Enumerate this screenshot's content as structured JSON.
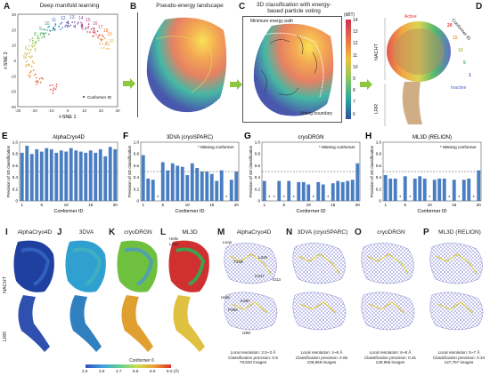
{
  "panels": {
    "A": {
      "letter": "A",
      "title": "Deep manifold learning",
      "xlabel": "t-SNE 1",
      "ylabel": "t-SNE 2",
      "legend": "Conformer ID",
      "xticks": [
        "-30",
        "-20",
        "-10",
        "0",
        "10",
        "20",
        "30"
      ],
      "yticks": [
        "30",
        "20",
        "10",
        "0",
        "-10",
        "-20",
        "-30"
      ],
      "ids": [
        "1",
        "2",
        "3",
        "4",
        "5",
        "6",
        "7",
        "8",
        "9",
        "10",
        "11",
        "12",
        "13",
        "14",
        "15",
        "16",
        "17",
        "18",
        "19",
        "20"
      ]
    },
    "B": {
      "letter": "B",
      "title": "Pseudo-energy landscape"
    },
    "C": {
      "letter": "C",
      "title": "3D classification with energy-based particle voting",
      "mep": "Minimum energy path",
      "boundary": "Voting boundary",
      "unit": "(kBT)",
      "cbar": [
        "14",
        "13",
        "12",
        "11",
        "10",
        "9",
        "8",
        "7",
        "6"
      ]
    },
    "D": {
      "letter": "D",
      "active": "Active",
      "inactive": "Inactive",
      "conformer": "Conformer ID",
      "nacht": "NACHT",
      "lrr": "LRR",
      "ids": [
        "20",
        "15",
        "10",
        "5",
        "1"
      ]
    },
    "E": {
      "letter": "E",
      "title": "AlphaCryo4D"
    },
    "F": {
      "letter": "F",
      "title": "3DVA (cryoSPARC)",
      "legend": "Missing conformer"
    },
    "G": {
      "letter": "G",
      "title": "cryoDRGN",
      "legend": "Missing conformer"
    },
    "H": {
      "letter": "H",
      "title": "ML3D (RELION)",
      "legend": "Missing conformer"
    },
    "I": {
      "letter": "I",
      "title": "AlphaCryo4D"
    },
    "J": {
      "letter": "J",
      "title": "3DVA"
    },
    "K": {
      "letter": "K",
      "title": "cryoDRGN"
    },
    "L": {
      "letter": "L",
      "title": "ML3D",
      "helix": "Helix",
      "loop": "Loop"
    },
    "M": {
      "letter": "M",
      "title": "AlphaCryo4D",
      "stats": [
        "Local resolution: 2.5~3 Å",
        "Classification precision: 0.9",
        "79,833 images"
      ],
      "residues": [
        "Loop",
        "T318",
        "L316",
        "C317",
        "I313",
        "Helix",
        "K287",
        "P283",
        "I288"
      ]
    },
    "N": {
      "letter": "N",
      "title": "3DVA (cryoSPARC)",
      "stats": [
        "Local resolution: 4~8 Å",
        "Classification precision: 0.65",
        "106,869 images"
      ]
    },
    "O": {
      "letter": "O",
      "title": "cryoDRGN",
      "stats": [
        "Local resolution: 6~8 Å",
        "Classification precision: 0.31",
        "129,986 images"
      ]
    },
    "P": {
      "letter": "P",
      "title": "ML3D (RELION)",
      "stats": [
        "Local resolution: 5~7 Å",
        "Classification precision: 0.34",
        "127,767 images"
      ]
    }
  },
  "side_labels": {
    "nacht": "NACHT",
    "lrr": "LRR"
  },
  "cbar_bottom": {
    "title": "Conformer 6",
    "ticks": [
      "2.5",
      "3.6",
      "4.7",
      "5.8",
      "6.9",
      "8.0 (Å)"
    ]
  },
  "bar_axes": {
    "xlabel": "Conformer ID",
    "ylabel": "Precision of 3D classification",
    "yticks": [
      "0",
      "0.2",
      "0.4",
      "0.6",
      "0.8",
      "1.0"
    ],
    "xticks": [
      "1",
      "5",
      "10",
      "15",
      "20"
    ],
    "threshold": 0.5
  },
  "chart_data": [
    {
      "type": "bar",
      "panel": "E",
      "title": "AlphaCryo4D",
      "xlabel": "Conformer ID",
      "ylabel": "Precision of 3D classification",
      "ylim": [
        0,
        1
      ],
      "categories": [
        1,
        2,
        3,
        4,
        5,
        6,
        7,
        8,
        9,
        10,
        11,
        12,
        13,
        14,
        15,
        16,
        17,
        18,
        19,
        20
      ],
      "values": [
        0.82,
        0.94,
        0.8,
        0.88,
        0.84,
        0.9,
        0.88,
        0.82,
        0.86,
        0.84,
        0.9,
        0.86,
        0.84,
        0.82,
        0.86,
        0.82,
        0.88,
        0.76,
        0.92,
        0.88
      ],
      "missing": []
    },
    {
      "type": "bar",
      "panel": "F",
      "title": "3DVA (cryoSPARC)",
      "xlabel": "Conformer ID",
      "ylabel": "Precision of 3D classification",
      "ylim": [
        0,
        1
      ],
      "categories": [
        1,
        2,
        3,
        4,
        5,
        6,
        7,
        8,
        9,
        10,
        11,
        12,
        13,
        14,
        15,
        16,
        17,
        18,
        19,
        20
      ],
      "values": [
        0.78,
        0.38,
        0.36,
        0,
        0.66,
        0.52,
        0.64,
        0.6,
        0.58,
        0.44,
        0.64,
        0.56,
        0.5,
        0.5,
        0.46,
        0.34,
        0.52,
        0,
        0.36,
        0.5
      ],
      "missing": [
        4,
        18
      ]
    },
    {
      "type": "bar",
      "panel": "G",
      "title": "cryoDRGN",
      "xlabel": "Conformer ID",
      "ylabel": "Precision of 3D classification",
      "ylim": [
        0,
        1
      ],
      "categories": [
        1,
        2,
        3,
        4,
        5,
        6,
        7,
        8,
        9,
        10,
        11,
        12,
        13,
        14,
        15,
        16,
        17,
        18,
        19,
        20
      ],
      "values": [
        0.34,
        0,
        0,
        0.34,
        0,
        0.34,
        0,
        0.32,
        0.32,
        0.28,
        0,
        0.32,
        0.28,
        0,
        0.3,
        0.34,
        0.32,
        0.34,
        0.36,
        0.64
      ],
      "missing": [
        2,
        3,
        5,
        7,
        11,
        14
      ]
    },
    {
      "type": "bar",
      "panel": "H",
      "title": "ML3D (RELION)",
      "xlabel": "Conformer ID",
      "ylabel": "Precision of 3D classification",
      "ylim": [
        0,
        1
      ],
      "categories": [
        1,
        2,
        3,
        4,
        5,
        6,
        7,
        8,
        9,
        10,
        11,
        12,
        13,
        14,
        15,
        16,
        17,
        18,
        19,
        20
      ],
      "values": [
        0.44,
        0.38,
        0.38,
        0,
        0.42,
        0,
        0.38,
        0.42,
        0.38,
        0,
        0.36,
        0.38,
        0.38,
        0,
        0.36,
        0,
        0.36,
        0.38,
        0,
        0.52
      ],
      "missing": [
        4,
        6,
        10,
        14,
        16,
        19
      ]
    }
  ]
}
